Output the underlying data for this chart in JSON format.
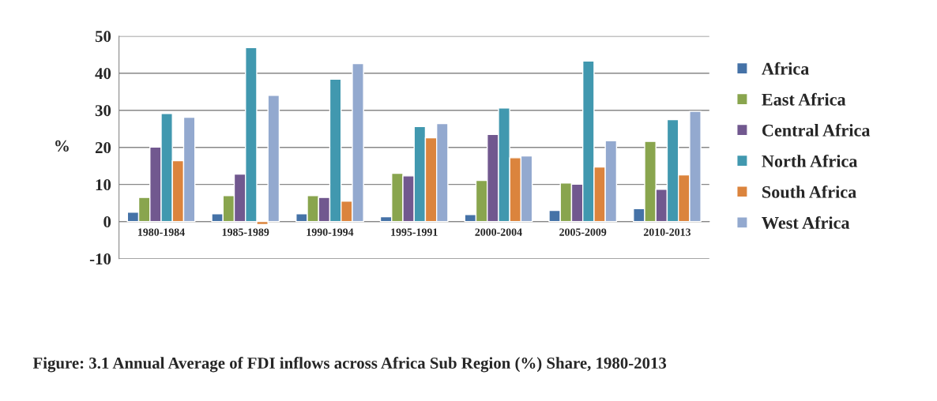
{
  "chart_data": {
    "type": "bar",
    "ylabel": "%",
    "categories": [
      "1980-1984",
      "1985-1989",
      "1990-1994",
      "1995-1991",
      "2000-2004",
      "2005-2009",
      "2010-2013"
    ],
    "series": [
      {
        "name": "Africa",
        "color": "#4572a7",
        "values": [
          2.5,
          2.1,
          2.1,
          1.3,
          1.9,
          3.0,
          3.5
        ]
      },
      {
        "name": "East Africa",
        "color": "#89a54e",
        "values": [
          6.5,
          7.0,
          7.0,
          13.0,
          11.1,
          10.4,
          21.6
        ]
      },
      {
        "name": "Central Africa",
        "color": "#71588f",
        "values": [
          20.1,
          12.8,
          6.5,
          12.3,
          23.5,
          10.1,
          8.7
        ]
      },
      {
        "name": "North Africa",
        "color": "#4198af",
        "values": [
          29.1,
          46.9,
          38.4,
          25.6,
          30.6,
          43.3,
          27.5
        ]
      },
      {
        "name": "South Africa",
        "color": "#db843d",
        "values": [
          16.4,
          -0.8,
          5.5,
          22.6,
          17.2,
          14.7,
          12.6
        ]
      },
      {
        "name": "West Africa",
        "color": "#93a9cf",
        "values": [
          28.1,
          34.0,
          42.6,
          26.4,
          17.7,
          21.8,
          29.7
        ]
      }
    ],
    "ylim": [
      -10,
      50
    ],
    "yticks": [
      -10,
      0,
      10,
      20,
      30,
      40,
      50
    ],
    "grid": "y",
    "legend": "right",
    "annotations": [
      "Figure: 3.1 Annual Average of FDI inflows across Africa Sub Region (%) Share, 1980-2013"
    ]
  }
}
